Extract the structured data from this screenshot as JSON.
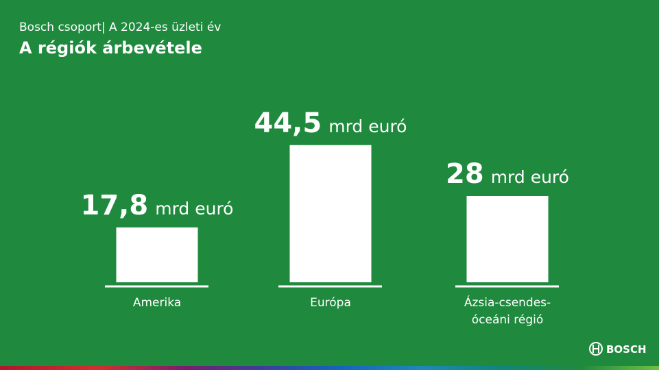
{
  "chart_data": {
    "type": "bar",
    "subtitle": "Bosch csoport| A 2024-es üzleti év",
    "title": "A régiók árbevétele",
    "categories": [
      "Amerika",
      "Európa",
      "Ázsia-csendes-óceáni régió"
    ],
    "values": [
      17.8,
      44.5,
      28
    ],
    "value_labels": [
      "17,8",
      "44,5",
      "28"
    ],
    "unit": "mrd euró",
    "color": "#ffffff",
    "brand": "BOSCH"
  }
}
